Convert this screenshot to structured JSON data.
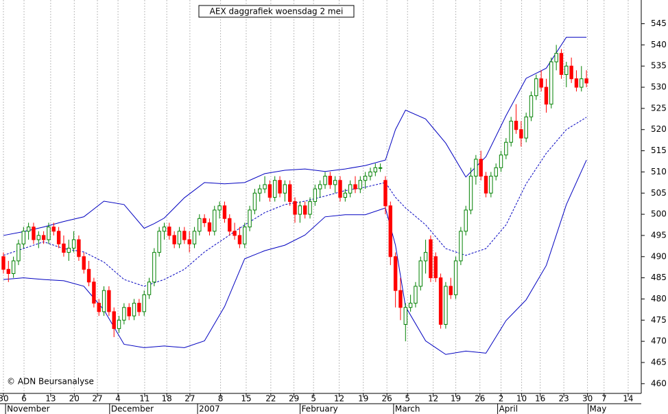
{
  "chart_data": {
    "type": "candlestick",
    "title": "AEX daggrafiek  woensdag 2 mei",
    "credit": "© ADN Beursanalyse",
    "up_color": "#008000",
    "down_color": "#ff0000",
    "candles": [
      [
        490,
        491,
        486,
        487
      ],
      [
        487,
        489,
        484,
        486
      ],
      [
        486,
        490,
        485,
        489
      ],
      [
        489,
        494,
        488,
        493
      ],
      [
        493,
        497,
        492,
        496
      ],
      [
        496,
        498,
        494,
        497
      ],
      [
        497,
        498,
        493,
        494
      ],
      [
        494,
        496,
        492,
        495
      ],
      [
        495,
        496,
        493,
        494
      ],
      [
        494,
        498,
        493,
        497
      ],
      [
        497,
        498,
        495,
        496
      ],
      [
        496,
        497,
        492,
        493
      ],
      [
        493,
        495,
        490,
        491
      ],
      [
        491,
        494,
        489,
        492
      ],
      [
        492,
        496,
        491,
        494
      ],
      [
        494,
        495,
        489,
        490
      ],
      [
        490,
        491,
        486,
        487
      ],
      [
        487,
        489,
        483,
        484
      ],
      [
        484,
        485,
        478,
        479
      ],
      [
        479,
        480,
        476,
        477
      ],
      [
        477,
        483,
        476,
        482
      ],
      [
        482,
        483,
        476,
        477
      ],
      [
        477,
        478,
        471,
        473
      ],
      [
        473,
        476,
        472,
        475
      ],
      [
        475,
        479,
        474,
        478
      ],
      [
        478,
        479,
        475,
        476
      ],
      [
        476,
        480,
        475,
        479
      ],
      [
        479,
        480,
        476,
        477
      ],
      [
        477,
        482,
        476,
        481
      ],
      [
        481,
        485,
        480,
        484
      ],
      [
        484,
        492,
        483,
        491
      ],
      [
        491,
        497,
        490,
        496
      ],
      [
        496,
        498,
        494,
        497
      ],
      [
        497,
        498,
        494,
        495
      ],
      [
        495,
        496,
        492,
        493
      ],
      [
        493,
        497,
        492,
        496
      ],
      [
        496,
        497,
        493,
        494
      ],
      [
        494,
        496,
        491,
        493
      ],
      [
        493,
        497,
        492,
        496
      ],
      [
        496,
        500,
        495,
        499
      ],
      [
        499,
        500,
        497,
        498
      ],
      [
        498,
        499,
        495,
        496
      ],
      [
        496,
        502,
        495,
        501
      ],
      [
        501,
        503,
        499,
        502
      ],
      [
        502,
        503,
        498,
        499
      ],
      [
        499,
        500,
        495,
        496
      ],
      [
        496,
        498,
        494,
        495
      ],
      [
        495,
        497,
        492,
        493
      ],
      [
        493,
        498,
        492,
        497
      ],
      [
        497,
        502,
        496,
        501
      ],
      [
        501,
        506,
        500,
        505
      ],
      [
        505,
        507,
        503,
        506
      ],
      [
        506,
        509,
        505,
        507
      ],
      [
        507,
        508,
        503,
        504
      ],
      [
        504,
        509,
        503,
        508
      ],
      [
        508,
        509,
        504,
        505
      ],
      [
        505,
        508,
        503,
        507
      ],
      [
        507,
        508,
        502,
        503
      ],
      [
        503,
        504,
        498,
        500
      ],
      [
        500,
        503,
        498,
        502
      ],
      [
        502,
        503,
        499,
        500
      ],
      [
        500,
        504,
        499,
        503
      ],
      [
        503,
        507,
        502,
        506
      ],
      [
        506,
        508,
        504,
        507
      ],
      [
        507,
        510,
        506,
        509
      ],
      [
        509,
        510,
        506,
        507
      ],
      [
        507,
        509,
        505,
        508
      ],
      [
        508,
        509,
        503,
        504
      ],
      [
        504,
        506,
        503,
        505
      ],
      [
        505,
        508,
        504,
        507
      ],
      [
        507,
        509,
        505,
        506
      ],
      [
        506,
        509,
        505,
        508
      ],
      [
        508,
        510,
        506,
        509
      ],
      [
        509,
        511,
        508,
        510
      ],
      [
        510,
        512,
        509,
        511
      ],
      [
        511,
        512,
        510,
        511
      ],
      [
        508,
        509,
        500,
        502
      ],
      [
        502,
        503,
        488,
        490
      ],
      [
        490,
        491,
        478,
        482
      ],
      [
        482,
        485,
        475,
        478
      ],
      [
        474,
        479,
        470,
        478
      ],
      [
        478,
        481,
        477,
        479
      ],
      [
        479,
        484,
        478,
        483
      ],
      [
        483,
        490,
        482,
        489
      ],
      [
        489,
        494,
        486,
        491
      ],
      [
        494,
        495,
        484,
        485
      ],
      [
        490,
        491,
        484,
        485
      ],
      [
        485,
        486,
        473,
        474
      ],
      [
        474,
        484,
        473,
        483
      ],
      [
        483,
        485,
        480,
        481
      ],
      [
        481,
        490,
        480,
        489
      ],
      [
        489,
        497,
        488,
        496
      ],
      [
        496,
        502,
        495,
        501
      ],
      [
        501,
        511,
        500,
        509
      ],
      [
        509,
        514,
        507,
        513
      ],
      [
        513,
        515,
        508,
        509
      ],
      [
        509,
        510,
        504,
        505
      ],
      [
        505,
        510,
        504,
        509
      ],
      [
        509,
        512,
        508,
        511
      ],
      [
        511,
        515,
        510,
        514
      ],
      [
        514,
        518,
        513,
        517
      ],
      [
        517,
        523,
        516,
        522
      ],
      [
        522,
        526,
        519,
        520
      ],
      [
        520,
        522,
        516,
        518
      ],
      [
        518,
        524,
        517,
        523
      ],
      [
        523,
        529,
        522,
        528
      ],
      [
        528,
        533,
        527,
        532
      ],
      [
        532,
        534,
        529,
        530
      ],
      [
        530,
        532,
        524,
        526
      ],
      [
        526,
        537,
        525,
        536
      ],
      [
        536,
        540,
        534,
        538
      ],
      [
        538,
        539,
        532,
        533
      ],
      [
        533,
        536,
        530,
        535
      ],
      [
        535,
        537,
        531,
        532
      ],
      [
        532,
        534,
        529,
        530
      ],
      [
        530,
        535,
        529,
        532
      ],
      [
        532,
        534,
        530,
        531
      ]
    ],
    "bands": [
      {
        "color": "#0000c0",
        "style": "solid",
        "x": [
          0,
          4,
          8,
          12,
          16,
          20,
          24,
          28,
          30,
          32,
          36,
          40,
          44,
          48,
          52,
          56,
          60,
          64,
          68,
          72,
          76,
          78,
          80,
          84,
          88,
          92,
          96,
          100,
          104,
          108,
          112,
          116
        ],
        "values": [
          495,
          495.9,
          497,
          498.3,
          499.4,
          503.1,
          502.3,
          496.7,
          497.8,
          499.1,
          503.9,
          507.5,
          507.2,
          507.5,
          509.6,
          510.4,
          510.7,
          510.1,
          510.7,
          511.5,
          512.8,
          520,
          524.6,
          522.5,
          516.8,
          508.8,
          513.6,
          523.3,
          532.1,
          534.5,
          541.8,
          541.8
        ]
      },
      {
        "color": "#0000c0",
        "style": "dashed",
        "x": [
          0,
          8,
          12,
          16,
          20,
          24,
          28,
          32,
          36,
          40,
          44,
          48,
          52,
          56,
          60,
          64,
          68,
          72,
          76,
          78,
          80,
          84,
          88,
          92,
          96,
          100,
          104,
          108,
          112,
          116
        ],
        "values": [
          490.3,
          493.5,
          491.9,
          491.1,
          488.7,
          484.6,
          483,
          484.6,
          487,
          491.1,
          494.3,
          497.5,
          500.4,
          502.3,
          503.1,
          504.3,
          505.6,
          506.4,
          507.5,
          504,
          501.5,
          497.5,
          491.9,
          490.3,
          491.9,
          497.5,
          507.2,
          514.4,
          520,
          522.9
        ]
      },
      {
        "color": "#0000c0",
        "style": "solid",
        "x": [
          0,
          4,
          8,
          12,
          16,
          20,
          24,
          28,
          32,
          36,
          40,
          44,
          48,
          52,
          56,
          60,
          64,
          68,
          72,
          76,
          78,
          80,
          84,
          88,
          92,
          96,
          100,
          104,
          108,
          112,
          116
        ],
        "values": [
          484.6,
          485,
          484.6,
          484.3,
          483,
          477.4,
          469.3,
          468.5,
          468.9,
          468.5,
          470.1,
          478.2,
          489.5,
          491.4,
          492.7,
          495.1,
          499.4,
          499.9,
          499.9,
          501.5,
          492.7,
          478.2,
          470.1,
          466.9,
          467.7,
          467.2,
          474.9,
          479.8,
          487.9,
          502.3,
          512.8
        ]
      }
    ],
    "xlim": [
      -0.68,
      126.9
    ],
    "xticks": [
      {
        "value": 0,
        "label": "30"
      },
      {
        "value": 4.1,
        "label": "6"
      },
      {
        "value": 9.4,
        "label": "13"
      },
      {
        "value": 14.1,
        "label": "20"
      },
      {
        "value": 18.7,
        "label": "27"
      },
      {
        "value": 22.8,
        "label": "4"
      },
      {
        "value": 28.1,
        "label": "11"
      },
      {
        "value": 32.5,
        "label": "18"
      },
      {
        "value": 37.1,
        "label": "27"
      },
      {
        "value": 43.2,
        "label": "8"
      },
      {
        "value": 48.3,
        "label": "15"
      },
      {
        "value": 53.2,
        "label": "22"
      },
      {
        "value": 57.8,
        "label": "29"
      },
      {
        "value": 61.7,
        "label": "5"
      },
      {
        "value": 66.8,
        "label": "12"
      },
      {
        "value": 71.6,
        "label": "19"
      },
      {
        "value": 76.3,
        "label": "26"
      },
      {
        "value": 80.4,
        "label": "5"
      },
      {
        "value": 85.5,
        "label": "12"
      },
      {
        "value": 90,
        "label": "19"
      },
      {
        "value": 94.8,
        "label": "26"
      },
      {
        "value": 99,
        "label": "2"
      },
      {
        "value": 103.1,
        "label": "10"
      },
      {
        "value": 106.8,
        "label": "16"
      },
      {
        "value": 111.5,
        "label": "23"
      },
      {
        "value": 116.2,
        "label": "30"
      },
      {
        "value": 119.5,
        "label": "7"
      },
      {
        "value": 124.3,
        "label": "14"
      }
    ],
    "month_labels": [
      {
        "value": 0.7,
        "label": "November"
      },
      {
        "value": 21.4,
        "label": "December"
      },
      {
        "value": 38.9,
        "label": "2007"
      },
      {
        "value": 59.3,
        "label": "February"
      },
      {
        "value": 77.9,
        "label": "March"
      },
      {
        "value": 98.6,
        "label": "April"
      },
      {
        "value": 116.6,
        "label": "May"
      }
    ],
    "ylim": [
      457.7,
      550.6
    ],
    "yticks": [
      460,
      465,
      470,
      475,
      480,
      485,
      490,
      495,
      500,
      505,
      510,
      515,
      520,
      525,
      530,
      535,
      540,
      545
    ],
    "grid": true
  }
}
